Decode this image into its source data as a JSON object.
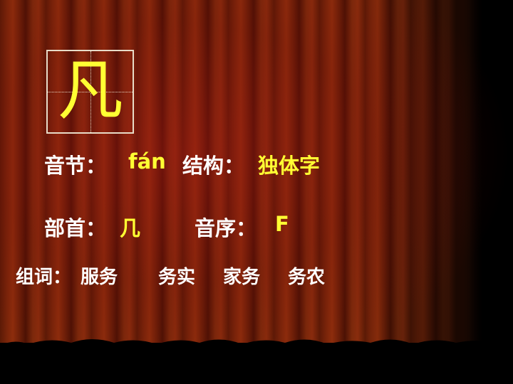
{
  "character": "凡",
  "pinyin_label": "音节：",
  "pinyin_value": "fán",
  "structure_label": "结构：",
  "structure_value": "独体字",
  "radical_label": "部首：",
  "radical_value": "几",
  "order_label": "音序：",
  "order_value": "F",
  "words_label": "组词：",
  "words": [
    "服务",
    "务实",
    "家务",
    "务农"
  ],
  "colors": {
    "highlight": "#ffff33",
    "text": "#ffffff",
    "curtain": "#7a260a"
  }
}
